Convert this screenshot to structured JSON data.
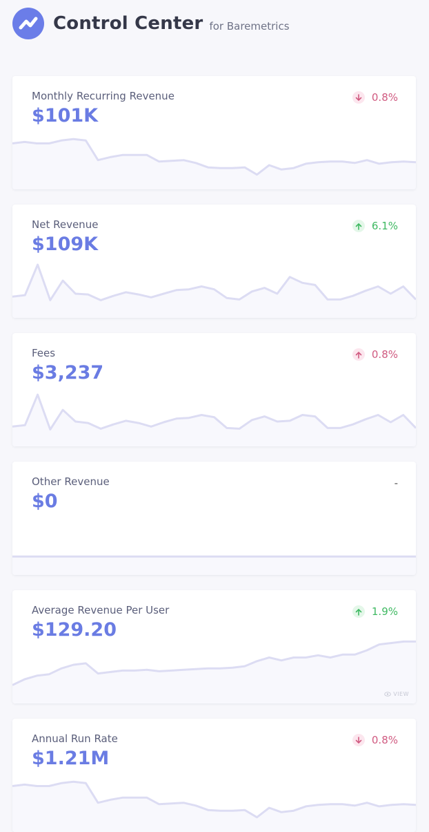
{
  "header": {
    "title": "Control Center",
    "subtitle": "for Baremetrics",
    "logo_icon": "baremetrics-logo-icon"
  },
  "colors": {
    "accent": "#6a7ce3",
    "sparkline": "#dcdcf3",
    "negative": "#d05a80",
    "positive": "#3fb962",
    "background": "#f7f7fb"
  },
  "cards": [
    {
      "label": "Monthly Recurring Revenue",
      "value": "$101K",
      "change": "0.8%",
      "direction": "down",
      "spark": [
        50,
        52,
        50,
        50,
        54,
        56,
        54,
        27,
        31,
        34,
        34,
        34,
        25,
        26,
        27,
        23,
        17,
        16,
        16,
        17,
        7,
        20,
        14,
        16,
        22,
        24,
        25,
        25,
        23,
        27,
        22,
        24,
        25,
        24
      ]
    },
    {
      "label": "Net Revenue",
      "value": "$109K",
      "change": "6.1%",
      "direction": "up",
      "spark": [
        16,
        18,
        60,
        11,
        38,
        20,
        19,
        11,
        17,
        22,
        19,
        15,
        20,
        25,
        26,
        30,
        26,
        14,
        12,
        23,
        28,
        20,
        43,
        35,
        32,
        12,
        12,
        17,
        24,
        30,
        20,
        30,
        12
      ]
    },
    {
      "label": "Fees",
      "value": "$3,237",
      "change": "0.8%",
      "direction": "up-bad",
      "spark": [
        14,
        16,
        58,
        10,
        37,
        21,
        19,
        11,
        17,
        22,
        19,
        14,
        20,
        25,
        26,
        30,
        27,
        12,
        11,
        23,
        28,
        21,
        22,
        30,
        28,
        12,
        12,
        17,
        24,
        30,
        20,
        30,
        12
      ]
    },
    {
      "label": "Other Revenue",
      "value": "$0",
      "change": "-",
      "direction": "none",
      "spark": [
        12,
        12
      ]
    },
    {
      "label": "Average Revenue Per User",
      "value": "$129.20",
      "change": "1.9%",
      "direction": "up",
      "spark": [
        12,
        20,
        25,
        27,
        35,
        40,
        42,
        28,
        30,
        32,
        32,
        33,
        31,
        32,
        33,
        34,
        35,
        35,
        36,
        38,
        45,
        50,
        46,
        50,
        50,
        53,
        50,
        54,
        54,
        60,
        68,
        70,
        72,
        72
      ],
      "view_label": "VIEW"
    },
    {
      "label": "Annual Run Rate",
      "value": "$1.21M",
      "change": "0.8%",
      "direction": "down",
      "spark": [
        50,
        52,
        50,
        50,
        54,
        56,
        54,
        27,
        31,
        34,
        34,
        34,
        25,
        26,
        27,
        23,
        17,
        16,
        16,
        17,
        7,
        20,
        14,
        16,
        22,
        24,
        25,
        25,
        23,
        27,
        22,
        24,
        25,
        24
      ]
    }
  ]
}
